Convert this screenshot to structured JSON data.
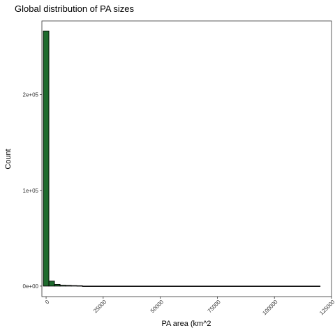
{
  "chart_data": {
    "type": "bar",
    "title": "Global distribution of PA sizes",
    "xlabel": "PA area (km^2",
    "ylabel": "Count",
    "fill_color": "#1e6b2d",
    "outline_color": "#000000",
    "panel_border_color": "#333333",
    "grid": false,
    "xlim": [
      -1850,
      125000
    ],
    "ylim": [
      -11000,
      277000
    ],
    "x_ticks": [
      {
        "value": 0,
        "label": "0"
      },
      {
        "value": 25000,
        "label": "25000"
      },
      {
        "value": 50000,
        "label": "50000"
      },
      {
        "value": 75000,
        "label": "75000"
      },
      {
        "value": 100000,
        "label": "100000"
      },
      {
        "value": 125000,
        "label": "125000"
      }
    ],
    "y_ticks": [
      {
        "value": 0,
        "label": "0e+00"
      },
      {
        "value": 100000,
        "label": "1e+05"
      },
      {
        "value": 200000,
        "label": "2e+05"
      }
    ],
    "bins": [
      {
        "x0": -1225,
        "x1": 1225,
        "count": 266500
      },
      {
        "x0": 1225,
        "x1": 3675,
        "count": 5200
      },
      {
        "x0": 3675,
        "x1": 6125,
        "count": 1800
      },
      {
        "x0": 6125,
        "x1": 8575,
        "count": 900
      },
      {
        "x0": 8575,
        "x1": 11025,
        "count": 700
      },
      {
        "x0": 11025,
        "x1": 13475,
        "count": 500
      },
      {
        "x0": 13475,
        "x1": 15925,
        "count": 350
      },
      {
        "x0": 15925,
        "x1": 120000,
        "count": 30
      }
    ]
  }
}
